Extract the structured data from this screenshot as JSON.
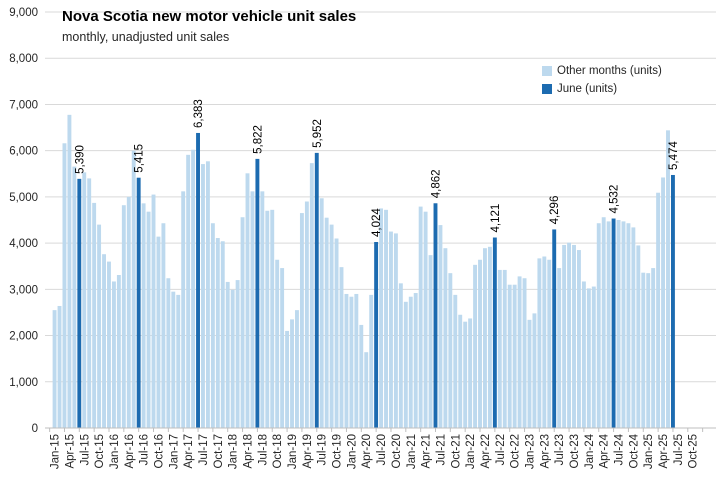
{
  "header": {
    "title": "Nova Scotia new motor vehicle unit sales",
    "subtitle": "monthly, unadjusted unit sales"
  },
  "legend": [
    {
      "label": "Other months (units)",
      "color": "#BDD9EE"
    },
    {
      "label": "June (units)",
      "color": "#1C6BB0"
    }
  ],
  "colors": {
    "other_bar": "#BDD9EE",
    "june_bar": "#1C6BB0",
    "gridline": "#D9D9D9",
    "axis": "#BFBFBF",
    "text": "#262626"
  },
  "y_axis": {
    "min": 0,
    "max": 9000,
    "step": 1000,
    "tick_labels": [
      "9,000",
      "8,000",
      "7,000",
      "6,000",
      "5,000",
      "4,000",
      "3,000",
      "2,000",
      "1,000",
      "0"
    ]
  },
  "x_axis": {
    "tick_labels": [
      "Jan-15",
      "Apr-15",
      "Jul-15",
      "Oct-15",
      "Jan-16",
      "Apr-16",
      "Jul-16",
      "Oct-16",
      "Jan-17",
      "Apr-17",
      "Jul-17",
      "Oct-17",
      "Jan-18",
      "Apr-18",
      "Jul-18",
      "Oct-18",
      "Jan-19",
      "Apr-19",
      "Jul-19",
      "Oct-19",
      "Jan-20",
      "Apr-20",
      "Jul-20",
      "Oct-20",
      "Jan-21",
      "Apr-21",
      "Jul-21",
      "Oct-21",
      "Jan-22",
      "Apr-22",
      "Jul-22",
      "Oct-22",
      "Jan-23",
      "Apr-23",
      "Jul-23",
      "Oct-23",
      "Jan-24",
      "Apr-24",
      "Jul-24",
      "Oct-24",
      "Jan-25",
      "Apr-25",
      "Jul-25",
      "Oct-25"
    ]
  },
  "chart_data": {
    "type": "bar",
    "title": "Nova Scotia new motor vehicle unit sales",
    "subtitle": "monthly, unadjusted unit sales",
    "ylabel": "units",
    "ylim": [
      0,
      9000
    ],
    "grid": true,
    "legend_position": "top-right",
    "months": [
      "Jan-15",
      "Feb-15",
      "Mar-15",
      "Apr-15",
      "May-15",
      "Jun-15",
      "Jul-15",
      "Aug-15",
      "Sep-15",
      "Oct-15",
      "Nov-15",
      "Dec-15",
      "Jan-16",
      "Feb-16",
      "Mar-16",
      "Apr-16",
      "May-16",
      "Jun-16",
      "Jul-16",
      "Aug-16",
      "Sep-16",
      "Oct-16",
      "Nov-16",
      "Dec-16",
      "Jan-17",
      "Feb-17",
      "Mar-17",
      "Apr-17",
      "May-17",
      "Jun-17",
      "Jul-17",
      "Aug-17",
      "Sep-17",
      "Oct-17",
      "Nov-17",
      "Dec-17",
      "Jan-18",
      "Feb-18",
      "Mar-18",
      "Apr-18",
      "May-18",
      "Jun-18",
      "Jul-18",
      "Aug-18",
      "Sep-18",
      "Oct-18",
      "Nov-18",
      "Dec-18",
      "Jan-19",
      "Feb-19",
      "Mar-19",
      "Apr-19",
      "May-19",
      "Jun-19",
      "Jul-19",
      "Aug-19",
      "Sep-19",
      "Oct-19",
      "Nov-19",
      "Dec-19",
      "Jan-20",
      "Feb-20",
      "Mar-20",
      "Apr-20",
      "May-20",
      "Jun-20",
      "Jul-20",
      "Aug-20",
      "Sep-20",
      "Oct-20",
      "Nov-20",
      "Dec-20",
      "Jan-21",
      "Feb-21",
      "Mar-21",
      "Apr-21",
      "May-21",
      "Jun-21",
      "Jul-21",
      "Aug-21",
      "Sep-21",
      "Oct-21",
      "Nov-21",
      "Dec-21",
      "Jan-22",
      "Feb-22",
      "Mar-22",
      "Apr-22",
      "May-22",
      "Jun-22",
      "Jul-22",
      "Aug-22",
      "Sep-22",
      "Oct-22",
      "Nov-22",
      "Dec-22",
      "Jan-23",
      "Feb-23",
      "Mar-23",
      "Apr-23",
      "May-23",
      "Jun-23",
      "Jul-23",
      "Aug-23",
      "Sep-23",
      "Oct-23",
      "Nov-23",
      "Dec-23",
      "Jan-24",
      "Feb-24",
      "Mar-24",
      "Apr-24",
      "May-24",
      "Jun-24",
      "Jul-24",
      "Aug-24",
      "Sep-24",
      "Oct-24",
      "Nov-24",
      "Dec-24",
      "Jan-25",
      "Feb-25",
      "Mar-25",
      "Apr-25",
      "May-25",
      "Jun-25"
    ],
    "values": [
      2550,
      2640,
      6160,
      6775,
      5655,
      5390,
      5530,
      5400,
      4870,
      4400,
      3760,
      3600,
      3170,
      3310,
      4820,
      5000,
      6000,
      5415,
      4860,
      4680,
      5050,
      4140,
      4430,
      3240,
      2950,
      2880,
      5120,
      5910,
      6020,
      6383,
      5710,
      5770,
      4430,
      4110,
      4040,
      3160,
      2990,
      3200,
      4560,
      5510,
      5120,
      5822,
      5120,
      4700,
      4720,
      3640,
      3460,
      2100,
      2350,
      2550,
      4650,
      4900,
      5730,
      5952,
      4970,
      4550,
      4400,
      4100,
      3480,
      2900,
      2840,
      2900,
      2230,
      1640,
      2880,
      4024,
      4750,
      4720,
      4250,
      4210,
      3130,
      2730,
      2840,
      2920,
      4790,
      4680,
      3740,
      4862,
      4390,
      3890,
      3350,
      2880,
      2450,
      2300,
      2370,
      3530,
      3640,
      3890,
      3920,
      4121,
      3420,
      3420,
      3100,
      3100,
      3280,
      3240,
      2340,
      2480,
      3670,
      3710,
      3640,
      4296,
      3460,
      3960,
      4010,
      3960,
      3850,
      3170,
      3020,
      3060,
      4430,
      4560,
      4470,
      4532,
      4500,
      4470,
      4430,
      4340,
      3950,
      3360,
      3350,
      3460,
      5090,
      5420,
      6440,
      5474
    ],
    "series": [
      {
        "name": "Other months (units)",
        "note": "all non-June months above"
      },
      {
        "name": "June (units)",
        "june_months": [
          "Jun-15",
          "Jun-16",
          "Jun-17",
          "Jun-18",
          "Jun-19",
          "Jun-20",
          "Jun-21",
          "Jun-22",
          "Jun-23",
          "Jun-24",
          "Jun-25"
        ],
        "june_values": [
          5390,
          5415,
          6383,
          5822,
          5952,
          4024,
          4862,
          4121,
          4296,
          4532,
          5474
        ],
        "june_labels": [
          "5,390",
          "5,415",
          "6,383",
          "5,822",
          "5,952",
          "4,024",
          "4,862",
          "4,121",
          "4,296",
          "4,532",
          "5,474"
        ]
      }
    ]
  }
}
